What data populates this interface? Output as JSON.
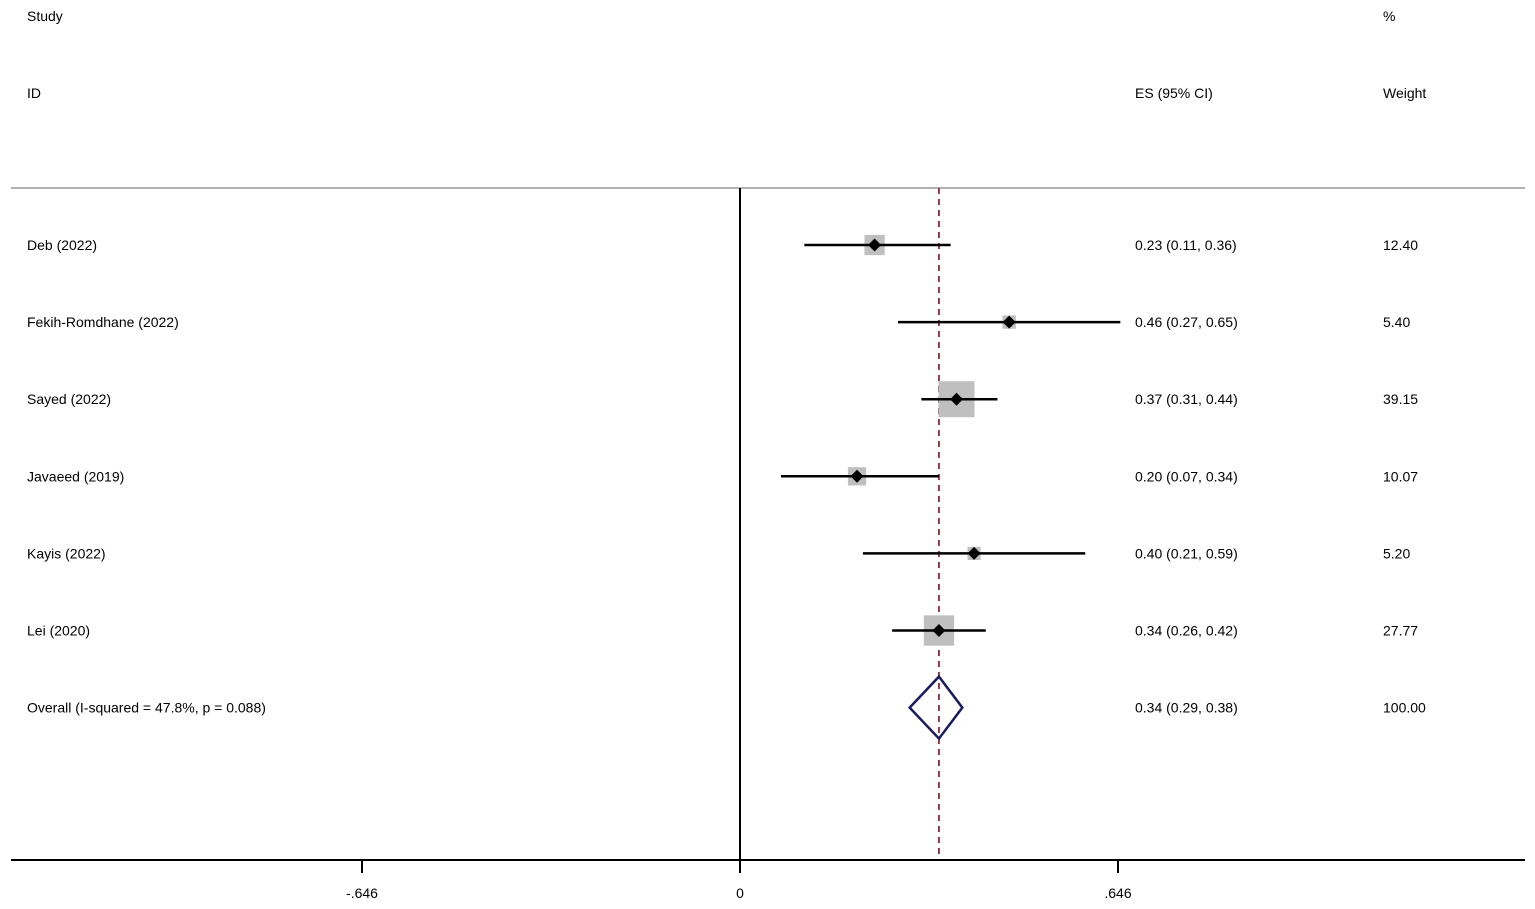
{
  "chart_data": {
    "type": "forest",
    "headers": {
      "study_line1": "Study",
      "study_line2": "ID",
      "es": "ES (95% CI)",
      "weight_line1": "%",
      "weight_line2": "Weight"
    },
    "studies": [
      {
        "label": "Deb  (2022)",
        "es": 0.23,
        "lo": 0.11,
        "hi": 0.36,
        "es_text": "0.23 (0.11, 0.36)",
        "weight": 12.4,
        "weight_text": "12.40"
      },
      {
        "label": "Fekih-Romdhane (2022)",
        "es": 0.46,
        "lo": 0.27,
        "hi": 0.65,
        "es_text": "0.46 (0.27, 0.65)",
        "weight": 5.4,
        "weight_text": "5.40"
      },
      {
        "label": "Sayed (2022)",
        "es": 0.37,
        "lo": 0.31,
        "hi": 0.44,
        "es_text": "0.37 (0.31, 0.44)",
        "weight": 39.15,
        "weight_text": "39.15"
      },
      {
        "label": "Javaeed (2019)",
        "es": 0.2,
        "lo": 0.07,
        "hi": 0.34,
        "es_text": "0.20 (0.07, 0.34)",
        "weight": 10.07,
        "weight_text": "10.07"
      },
      {
        "label": "Kayis (2022)",
        "es": 0.4,
        "lo": 0.21,
        "hi": 0.59,
        "es_text": "0.40 (0.21, 0.59)",
        "weight": 5.2,
        "weight_text": "5.20"
      },
      {
        "label": "Lei (2020)",
        "es": 0.34,
        "lo": 0.26,
        "hi": 0.42,
        "es_text": "0.34 (0.26, 0.42)",
        "weight": 27.77,
        "weight_text": "27.77"
      }
    ],
    "overall": {
      "label": "Overall  (I-squared = 47.8%, p = 0.088)",
      "es": 0.34,
      "lo": 0.29,
      "hi": 0.38,
      "es_text": "0.34 (0.29, 0.38)",
      "weight_text": "100.00"
    },
    "x_axis": {
      "ticks": [
        -0.646,
        0,
        0.646
      ],
      "tick_labels": [
        "-.646",
        "0",
        ".646"
      ],
      "xlim": [
        -1.27,
        1.35
      ]
    },
    "reference_line": 0,
    "overall_line": 0.34,
    "colors": {
      "box": "#bfbfbf",
      "point": "#000000",
      "ci": "#000000",
      "overall_diamond": "#1a1a5e",
      "overall_line": "#8b2b3a",
      "header_rule": "#999999"
    }
  }
}
